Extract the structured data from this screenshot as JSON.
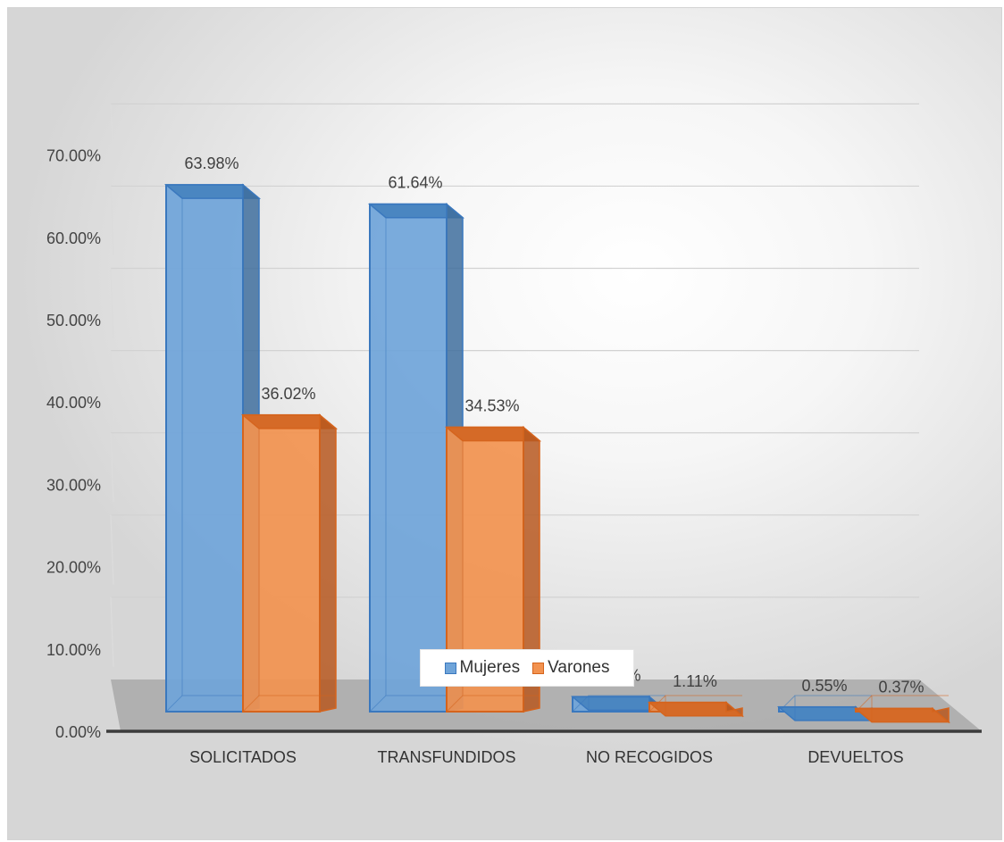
{
  "chart_data": {
    "type": "bar",
    "title": "",
    "xlabel": "",
    "ylabel": "",
    "categories": [
      "SOLICITADOS",
      "TRANSFUNDIDOS",
      "NO RECOGIDOS",
      "DEVUELTOS"
    ],
    "series": [
      {
        "name": "Mujeres",
        "values": [
          63.98,
          61.64,
          1.8,
          0.55
        ],
        "labels": [
          "63.98%",
          "61.64%",
          "1.80%",
          "0.55%"
        ],
        "color": "#5b9bd5"
      },
      {
        "name": "Varones",
        "values": [
          36.02,
          34.53,
          1.11,
          0.37
        ],
        "labels": [
          "36.02%",
          "34.53%",
          "1.11%",
          "0.37%"
        ],
        "color": "#ed7d31"
      }
    ],
    "ylim": [
      0,
      70
    ],
    "yticks": [
      0,
      10,
      20,
      30,
      40,
      50,
      60,
      70
    ],
    "ytick_labels": [
      "0.00%",
      "10.00%",
      "20.00%",
      "30.00%",
      "40.00%",
      "50.00%",
      "60.00%",
      "70.00%"
    ],
    "style": "3d-clustered-column",
    "grid": true,
    "legend_position": "bottom"
  }
}
